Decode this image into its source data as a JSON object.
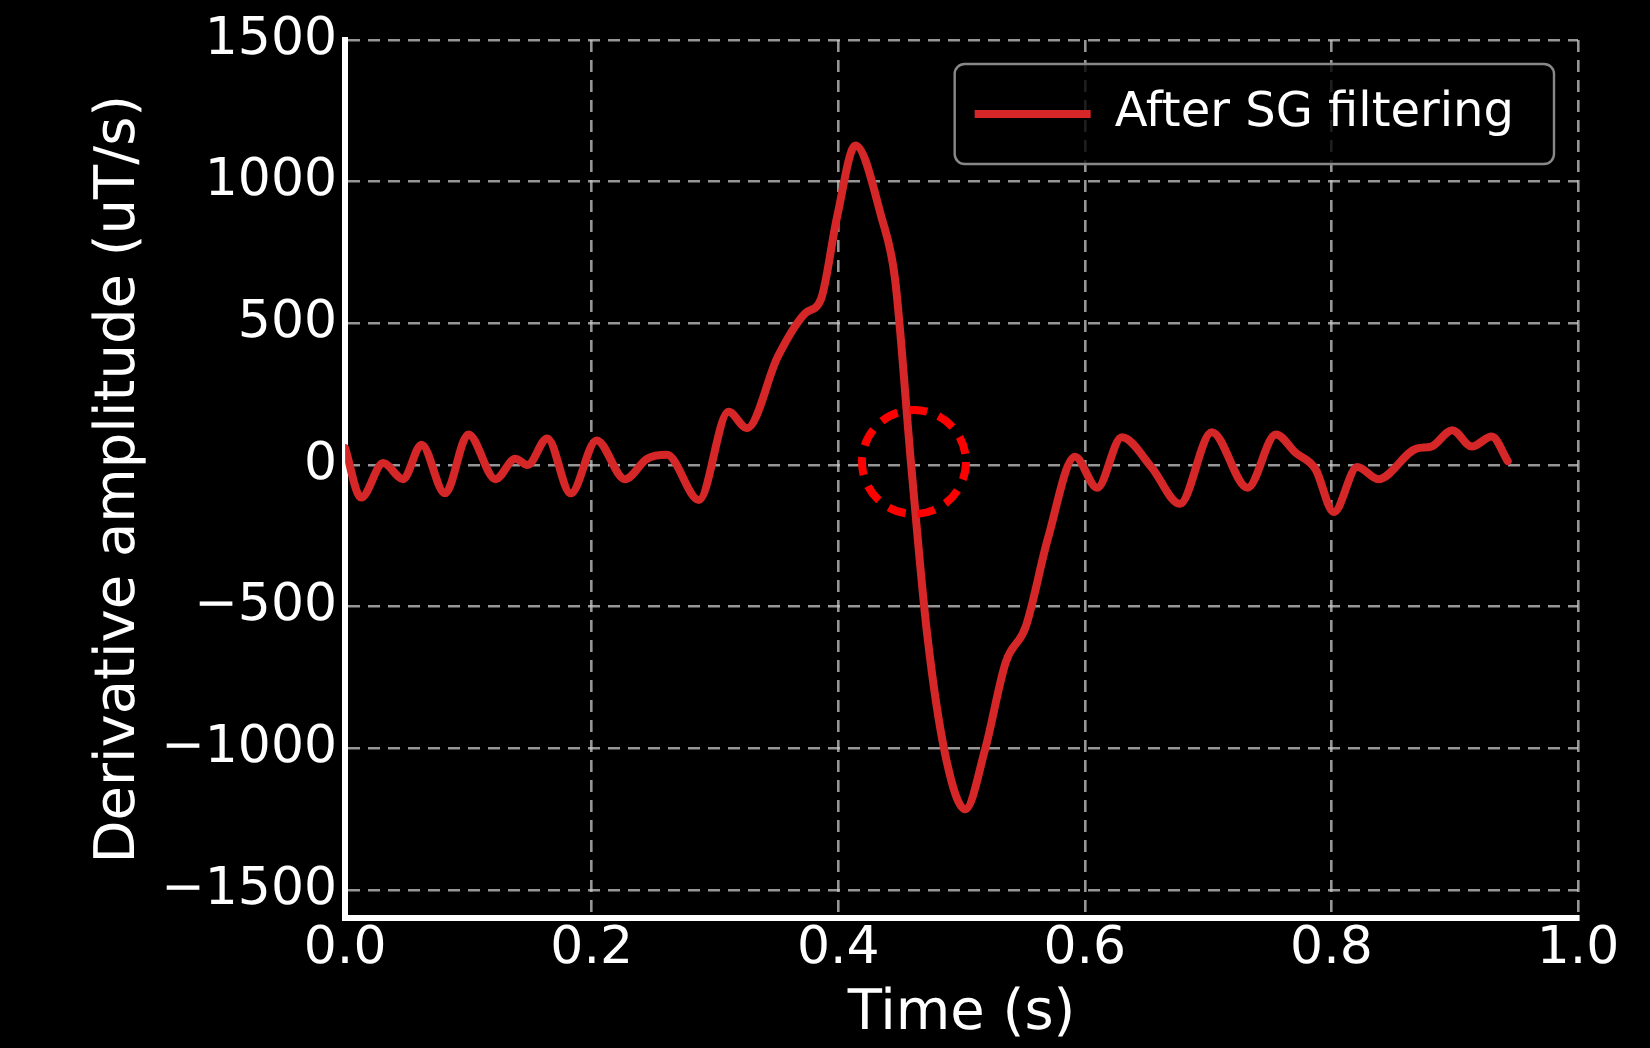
{
  "chart_data": {
    "type": "line",
    "xlabel": "Time (s)",
    "ylabel": "Derivative amplitude (uT/s)",
    "xlim": [
      0,
      1
    ],
    "xticks": [
      {
        "value": 0,
        "label": "0.0"
      },
      {
        "value": 0.2,
        "label": "0.2"
      },
      {
        "value": 0.4,
        "label": "0.4"
      },
      {
        "value": 0.6,
        "label": "0.6"
      },
      {
        "value": 0.8,
        "label": "0.8"
      },
      {
        "value": 1,
        "label": "1.0"
      }
    ],
    "ylim": [
      -1600,
      1500
    ],
    "yticks": [
      -1500,
      -1000,
      -500,
      0,
      500,
      1000,
      1500
    ],
    "grid": true,
    "legend": "top right",
    "line_style": "solid",
    "marker": "none",
    "series": [
      {
        "name": "After SG filtering",
        "color": "#d62728",
        "x": [
          0,
          0.013,
          0.031,
          0.047,
          0.062,
          0.081,
          0.1,
          0.122,
          0.138,
          0.148,
          0.164,
          0.183,
          0.204,
          0.227,
          0.245,
          0.261,
          0.287,
          0.311,
          0.326,
          0.351,
          0.373,
          0.386,
          0.399,
          0.414,
          0.435,
          0.446,
          0.459,
          0.472,
          0.487,
          0.503,
          0.519,
          0.536,
          0.552,
          0.57,
          0.592,
          0.61,
          0.63,
          0.654,
          0.677,
          0.703,
          0.732,
          0.755,
          0.771,
          0.787,
          0.802,
          0.821,
          0.838,
          0.869,
          0.881,
          0.898,
          0.914,
          0.93,
          0.943
        ],
        "values": [
          60,
          -115,
          7,
          -50,
          72,
          -100,
          108,
          -50,
          22,
          0,
          94,
          -100,
          87,
          -50,
          22,
          36,
          -123,
          188,
          130,
          383,
          535,
          586,
          875,
          1128,
          875,
          658,
          7,
          -593,
          -1027,
          -1215,
          -1005,
          -694,
          -571,
          -260,
          29,
          -80,
          98,
          -7,
          -137,
          116,
          -80,
          108,
          43,
          -14,
          -166,
          -7,
          -50,
          58,
          65,
          123,
          65,
          101,
          14
        ]
      }
    ]
  }
}
